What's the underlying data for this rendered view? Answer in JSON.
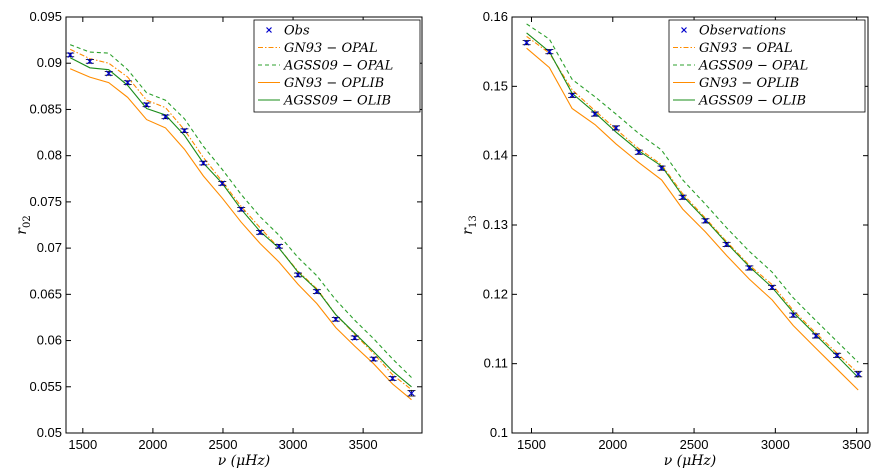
{
  "chart_data": [
    {
      "type": "line",
      "title": "",
      "xlabel": "ν (μHz)",
      "ylabel": "r02",
      "xlim": [
        1380,
        3920
      ],
      "ylim": [
        0.05,
        0.095
      ],
      "xticks": [
        1500,
        2000,
        2500,
        3000,
        3500
      ],
      "yticks": [
        0.05,
        0.055,
        0.06,
        0.065,
        0.07,
        0.075,
        0.08,
        0.085,
        0.09,
        0.095
      ],
      "ytick_labels": [
        "0.05",
        "0.055",
        "0.06",
        "0.065",
        "0.07",
        "0.075",
        "0.08",
        "0.085",
        "0.09",
        "0.095"
      ],
      "legend_position": "top-right",
      "observations": {
        "name": "Obs",
        "x": [
          1410,
          1550,
          1685,
          1820,
          1955,
          2090,
          2225,
          2360,
          2495,
          2630,
          2765,
          2900,
          3035,
          3170,
          3305,
          3440,
          3575,
          3710,
          3845
        ],
        "y": [
          0.0909,
          0.0902,
          0.0889,
          0.0879,
          0.0855,
          0.0842,
          0.0827,
          0.0792,
          0.077,
          0.0742,
          0.0717,
          0.0702,
          0.0671,
          0.0653,
          0.0623,
          0.0603,
          0.058,
          0.0559,
          0.0543
        ],
        "err": [
          0.0002,
          0.0002,
          0.0002,
          0.0002,
          0.0002,
          0.0002,
          0.0002,
          0.0002,
          0.0002,
          0.0002,
          0.0002,
          0.0002,
          0.0002,
          0.0002,
          0.0002,
          0.0002,
          0.0002,
          0.0002,
          0.0003
        ]
      },
      "series": [
        {
          "name": "GN93 − OPAL",
          "color": "#ff8c00",
          "dash": "dashdot",
          "x": [
            1410,
            1550,
            1685,
            1820,
            1955,
            2090,
            2225,
            2360,
            2495,
            2630,
            2765,
            2900,
            3035,
            3170,
            3305,
            3440,
            3575,
            3710,
            3845
          ],
          "y": [
            0.0915,
            0.0905,
            0.09,
            0.0885,
            0.086,
            0.0852,
            0.0828,
            0.0798,
            0.0772,
            0.0745,
            0.0722,
            0.07,
            0.0675,
            0.0656,
            0.0628,
            0.0607,
            0.0586,
            0.0563,
            0.0547
          ]
        },
        {
          "name": "AGSS09 − OPAL",
          "color": "#2ca02c",
          "dash": "dashed",
          "x": [
            1410,
            1550,
            1685,
            1820,
            1955,
            2090,
            2225,
            2360,
            2495,
            2630,
            2765,
            2900,
            3035,
            3170,
            3305,
            3440,
            3575,
            3710,
            3845
          ],
          "y": [
            0.092,
            0.0912,
            0.0911,
            0.0893,
            0.0868,
            0.086,
            0.084,
            0.081,
            0.0785,
            0.0758,
            0.0734,
            0.0714,
            0.069,
            0.067,
            0.0644,
            0.0622,
            0.0602,
            0.058,
            0.056
          ]
        },
        {
          "name": "GN93 − OPLIB",
          "color": "#ff8c00",
          "dash": "solid",
          "x": [
            1410,
            1550,
            1685,
            1820,
            1955,
            2090,
            2225,
            2360,
            2495,
            2630,
            2765,
            2900,
            3035,
            3170,
            3305,
            3440,
            3575,
            3710,
            3845
          ],
          "y": [
            0.0894,
            0.0885,
            0.0879,
            0.0863,
            0.0839,
            0.083,
            0.0807,
            0.0778,
            0.0754,
            0.0728,
            0.0705,
            0.0685,
            0.0661,
            0.064,
            0.0614,
            0.0594,
            0.0575,
            0.0553,
            0.0536
          ]
        },
        {
          "name": "AGSS09 − OLIB",
          "color": "#1a8c1a",
          "dash": "solid",
          "x": [
            1410,
            1550,
            1685,
            1820,
            1955,
            2090,
            2225,
            2360,
            2495,
            2630,
            2765,
            2900,
            3035,
            3170,
            3305,
            3440,
            3575,
            3710,
            3845
          ],
          "y": [
            0.0906,
            0.0895,
            0.0893,
            0.0876,
            0.0851,
            0.0844,
            0.0822,
            0.0792,
            0.077,
            0.0742,
            0.0718,
            0.07,
            0.0674,
            0.0655,
            0.0628,
            0.0608,
            0.0588,
            0.0567,
            0.055
          ]
        }
      ]
    },
    {
      "type": "line",
      "title": "",
      "xlabel": "ν (μHz)",
      "ylabel": "r13",
      "xlim": [
        1380,
        3570
      ],
      "ylim": [
        0.1,
        0.16
      ],
      "xticks": [
        1500,
        2000,
        2500,
        3000,
        3500
      ],
      "yticks": [
        0.1,
        0.11,
        0.12,
        0.13,
        0.14,
        0.15,
        0.16
      ],
      "ytick_labels": [
        "0.1",
        "0.11",
        "0.12",
        "0.13",
        "0.14",
        "0.15",
        "0.16"
      ],
      "legend_position": "top-right",
      "observations": {
        "name": "Observations",
        "x": [
          1470,
          1610,
          1750,
          1890,
          2020,
          2160,
          2300,
          2430,
          2570,
          2700,
          2840,
          2980,
          3110,
          3250,
          3380,
          3510
        ],
        "y": [
          0.1563,
          0.155,
          0.1487,
          0.146,
          0.144,
          0.1405,
          0.1382,
          0.134,
          0.1306,
          0.1272,
          0.1238,
          0.121,
          0.117,
          0.114,
          0.1112,
          0.1085
        ],
        "err": [
          0.0003,
          0.0003,
          0.0003,
          0.0003,
          0.0003,
          0.0003,
          0.0003,
          0.0003,
          0.0003,
          0.0003,
          0.0003,
          0.0003,
          0.0003,
          0.0003,
          0.0003,
          0.0004
        ]
      },
      "series": [
        {
          "name": "GN93 − OPAL",
          "color": "#ff8c00",
          "dash": "dashdot",
          "x": [
            1470,
            1610,
            1750,
            1890,
            2020,
            2160,
            2300,
            2430,
            2570,
            2700,
            2840,
            2980,
            3110,
            3250,
            3380,
            3510
          ],
          "y": [
            0.1572,
            0.1548,
            0.1495,
            0.1465,
            0.1438,
            0.141,
            0.1387,
            0.1345,
            0.131,
            0.1276,
            0.1242,
            0.1214,
            0.1177,
            0.1144,
            0.1115,
            0.1086
          ]
        },
        {
          "name": "AGSS09 − OPAL",
          "color": "#2ca02c",
          "dash": "dashed",
          "x": [
            1470,
            1610,
            1750,
            1890,
            2020,
            2160,
            2300,
            2430,
            2570,
            2700,
            2840,
            2980,
            3110,
            3250,
            3380,
            3510
          ],
          "y": [
            0.159,
            0.1568,
            0.151,
            0.1485,
            0.146,
            0.1432,
            0.1408,
            0.1365,
            0.133,
            0.1296,
            0.1262,
            0.1232,
            0.1195,
            0.1162,
            0.1132,
            0.1102
          ]
        },
        {
          "name": "GN93 − OPLIB",
          "color": "#ff8c00",
          "dash": "solid",
          "x": [
            1470,
            1610,
            1750,
            1890,
            2020,
            2160,
            2300,
            2430,
            2570,
            2700,
            2840,
            2980,
            3110,
            3250,
            3380,
            3510
          ],
          "y": [
            0.1555,
            0.1527,
            0.1468,
            0.1445,
            0.1417,
            0.139,
            0.1365,
            0.1323,
            0.129,
            0.1256,
            0.1222,
            0.1192,
            0.1155,
            0.1122,
            0.1092,
            0.1062
          ]
        },
        {
          "name": "AGSS09 − OLIB",
          "color": "#1a8c1a",
          "dash": "solid",
          "x": [
            1470,
            1610,
            1750,
            1890,
            2020,
            2160,
            2300,
            2430,
            2570,
            2700,
            2840,
            2980,
            3110,
            3250,
            3380,
            3510
          ],
          "y": [
            0.1577,
            0.155,
            0.149,
            0.1462,
            0.1434,
            0.1407,
            0.1385,
            0.1342,
            0.1308,
            0.1274,
            0.124,
            0.121,
            0.1174,
            0.1141,
            0.1111,
            0.108
          ]
        }
      ]
    }
  ]
}
